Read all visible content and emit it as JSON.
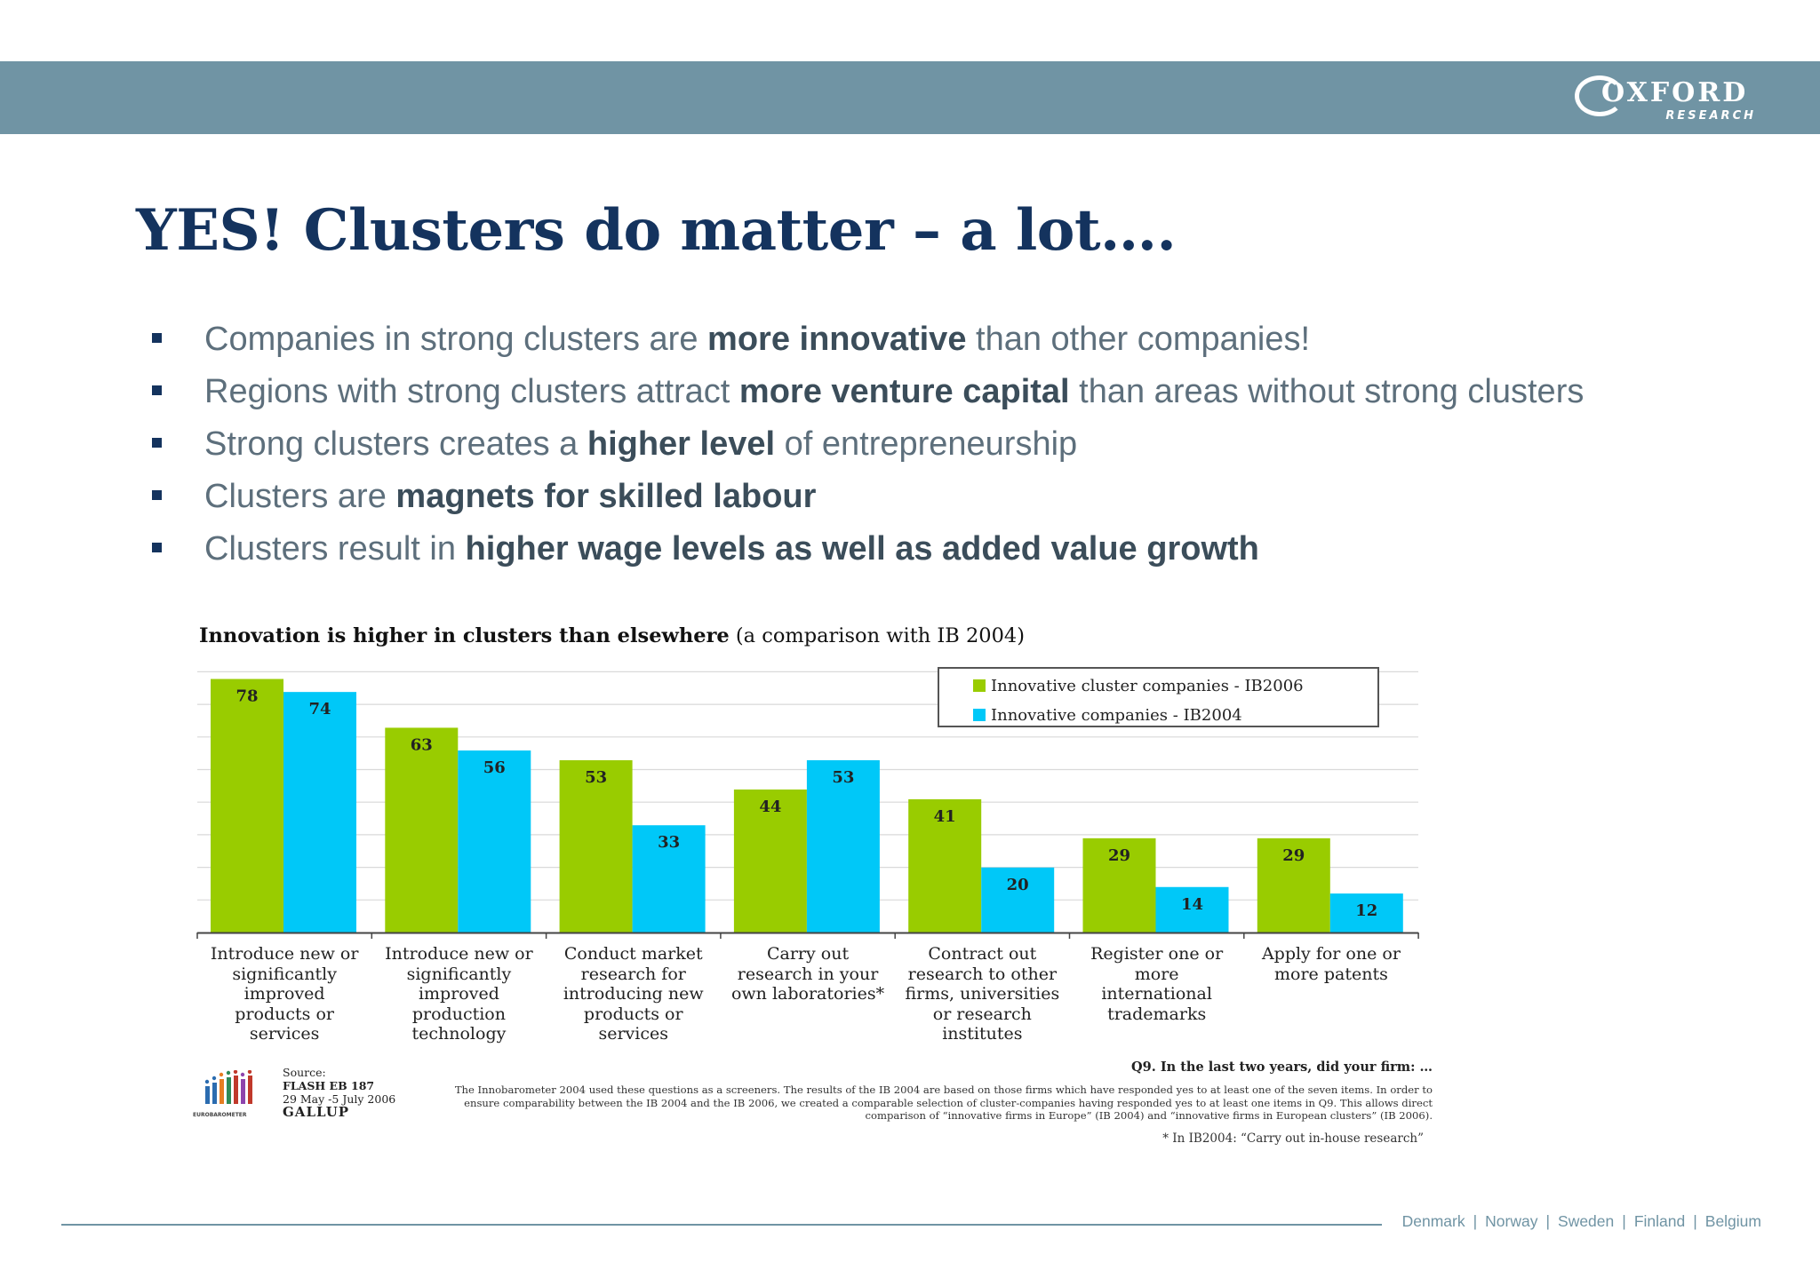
{
  "brand": {
    "logo_main": "OXFORD",
    "logo_sub": "RESEARCH"
  },
  "title": "YES! Clusters do matter – a lot….",
  "bullets": [
    {
      "before": "Companies in strong clusters are ",
      "bold": "more innovative",
      "after": " than other companies!"
    },
    {
      "before": "Regions with strong clusters attract ",
      "bold": "more venture capital",
      "after": " than areas without strong clusters"
    },
    {
      "before": "Strong clusters creates a ",
      "bold": "higher level",
      "after": " of entrepreneurship"
    },
    {
      "before": "Clusters are ",
      "bold": "magnets for skilled labour",
      "after": ""
    },
    {
      "before": "Clusters result in ",
      "bold": "higher wage levels as well as added value growth",
      "after": ""
    }
  ],
  "chart_data": {
    "type": "bar",
    "title_bold": "Innovation is higher in clusters than elsewhere",
    "title_rest": " (a comparison with IB 2004)",
    "categories": [
      "Introduce new or\nsignificantly\nimproved\nproducts or\nservices",
      "Introduce new or\nsignificantly\nimproved\nproduction\ntechnology",
      "Conduct market\nresearch for\nintroducing new\nproducts or\nservices",
      "Carry out\nresearch in your\nown laboratories*",
      "Contract out\nresearch to other\nfirms, universities\nor research\ninstitutes",
      "Register one or\nmore\ninternational\ntrademarks",
      "Apply for one or\nmore patents"
    ],
    "series": [
      {
        "name": "Innovative cluster companies - IB2006",
        "color": "#99cc00",
        "values": [
          78,
          63,
          53,
          44,
          41,
          29,
          29
        ]
      },
      {
        "name": "Innovative companies - IB2004",
        "color": "#00c8f8",
        "values": [
          74,
          56,
          33,
          53,
          20,
          14,
          12
        ]
      }
    ],
    "ylim": [
      0,
      80
    ],
    "grid": true,
    "legend_position": "top-right"
  },
  "source": {
    "line1": "Source:",
    "line2": "FLASH EB 187",
    "line3": "29 May -5 July 2006",
    "line4": "GALLUP",
    "logo_text": "EUROBAROMETER"
  },
  "question": "Q9. In the last two years, did your firm: …",
  "note": "The Innobarometer 2004 used these questions as a screeners. The results of the IB 2004 are based on those firms which have responded yes to at least one of the seven items. In order to ensure comparability between the IB 2004 and the IB 2006, we created a comparable selection of cluster-companies having responded yes to at least one items in Q9. This allows direct comparison of “innovative firms in Europe” (IB 2004) and “innovative firms in European clusters” (IB 2006).",
  "footnote": "* In IB2004: “Carry out in-house research”",
  "footer_countries": [
    "Denmark",
    "Norway",
    "Sweden",
    "Finland",
    "Belgium"
  ]
}
